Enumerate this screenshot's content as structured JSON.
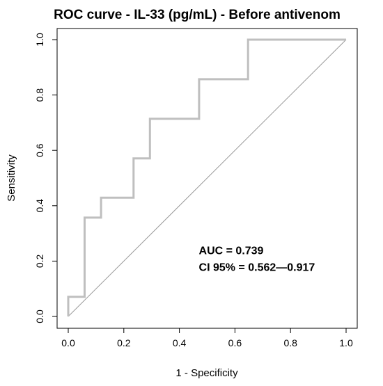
{
  "chart_data": {
    "type": "line",
    "title": "ROC curve - IL-33 (pg/mL) - Before antivenom",
    "xlabel": "1 - Specificity",
    "ylabel": "Sensitivity",
    "xlim": [
      0,
      1
    ],
    "ylim": [
      0,
      1
    ],
    "xticks": [
      "0.0",
      "0.2",
      "0.4",
      "0.6",
      "0.8",
      "1.0"
    ],
    "yticks": [
      "0.0",
      "0.2",
      "0.4",
      "0.6",
      "0.8",
      "1.0"
    ],
    "grid": false,
    "series": [
      {
        "color": "#bfbfbf",
        "x": [
          0.0,
          0.0,
          0.059,
          0.059,
          0.118,
          0.118,
          0.235,
          0.235,
          0.294,
          0.294,
          0.471,
          0.471,
          0.647,
          0.647,
          1.0
        ],
        "y": [
          0.0,
          0.071,
          0.071,
          0.357,
          0.357,
          0.429,
          0.429,
          0.571,
          0.571,
          0.714,
          0.714,
          0.857,
          0.857,
          1.0,
          1.0
        ]
      }
    ],
    "reference_line": {
      "color": "#999999",
      "x": [
        0,
        1
      ],
      "y": [
        0,
        1
      ]
    },
    "annotations": [
      {
        "text": "AUC = 0.739",
        "x": 0.47,
        "y": 0.24
      },
      {
        "text": "CI 95% = 0.562—0.917",
        "x": 0.47,
        "y": 0.18
      }
    ]
  }
}
